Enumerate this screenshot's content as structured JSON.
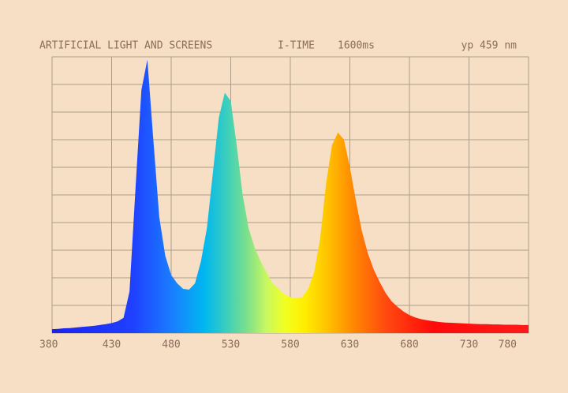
{
  "chart_data": {
    "type": "area",
    "title": "ARTIFICIAL LIGHT AND SCREENS",
    "integration_time_label": "I-TIME",
    "integration_time": "1600ms",
    "peak_label": "yp 459 nm",
    "x": [
      380,
      385,
      390,
      395,
      400,
      405,
      410,
      415,
      420,
      425,
      430,
      435,
      440,
      445,
      450,
      455,
      460,
      465,
      470,
      475,
      480,
      485,
      490,
      495,
      500,
      505,
      510,
      515,
      520,
      525,
      530,
      535,
      540,
      545,
      550,
      555,
      560,
      565,
      570,
      575,
      580,
      585,
      590,
      595,
      600,
      605,
      610,
      615,
      620,
      625,
      630,
      635,
      640,
      645,
      650,
      655,
      660,
      665,
      670,
      675,
      680,
      685,
      690,
      695,
      700,
      705,
      710,
      715,
      720,
      725,
      730,
      735,
      740,
      745,
      750,
      755,
      760,
      765,
      770,
      775,
      780
    ],
    "values": [
      1.4,
      1.5,
      1.7,
      1.8,
      2.0,
      2.2,
      2.4,
      2.6,
      2.9,
      3.2,
      3.6,
      4.2,
      5.5,
      15,
      52,
      88,
      99,
      70,
      42,
      28,
      21,
      18,
      16,
      15.7,
      18,
      26,
      38,
      58,
      78,
      87,
      84,
      68,
      50,
      38,
      31,
      26,
      22,
      18,
      16,
      14,
      13,
      12.6,
      13,
      16,
      22,
      34,
      54,
      68,
      72.6,
      70,
      60,
      48,
      37,
      29,
      23,
      18.5,
      14.5,
      11.5,
      9.5,
      7.8,
      6.5,
      5.6,
      5.0,
      4.6,
      4.3,
      4.0,
      3.8,
      3.7,
      3.6,
      3.5,
      3.4,
      3.3,
      3.2,
      3.2,
      3.1,
      3.1,
      3.0,
      3.0,
      3.0,
      2.9,
      2.9
    ],
    "xlim": [
      380,
      780
    ],
    "xticks": [
      380,
      430,
      480,
      530,
      580,
      630,
      680,
      730,
      780
    ],
    "ylim": [
      0,
      100
    ],
    "yticks": [
      0,
      10,
      20,
      30,
      40,
      50,
      60,
      70,
      80,
      90,
      100
    ],
    "grid": true
  }
}
